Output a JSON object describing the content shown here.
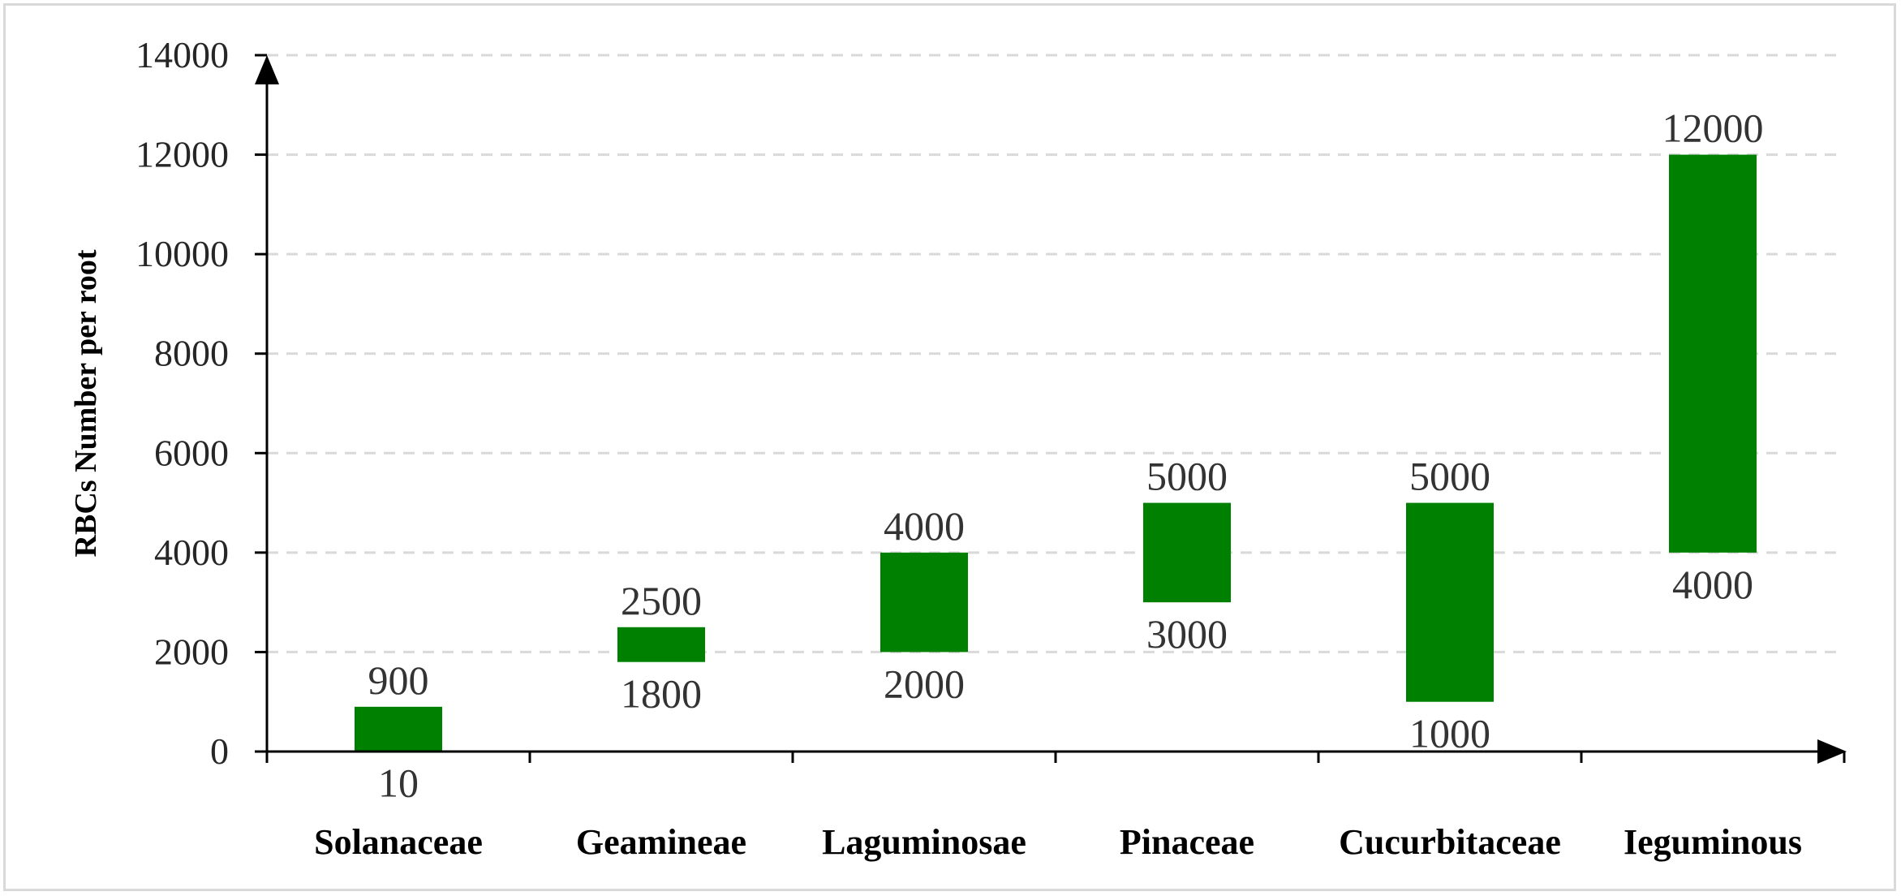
{
  "chart_data": {
    "type": "bar",
    "subtype": "floating-range",
    "title": "",
    "xlabel": "",
    "ylabel": "RBCs Number per root",
    "ylim": [
      0,
      14000
    ],
    "yticks": [
      "0",
      "2000",
      "4000",
      "6000",
      "8000",
      "10000",
      "12000",
      "14000"
    ],
    "grid": true,
    "categories": [
      "Solanaceae",
      "Geamineae",
      "Laguminosae",
      "Pinaceae",
      "Cucurbitaceae",
      "Ieguminous"
    ],
    "low": [
      10,
      1800,
      2000,
      3000,
      1000,
      4000
    ],
    "high": [
      900,
      2500,
      4000,
      5000,
      5000,
      12000
    ],
    "low_labels": [
      "10",
      "1800",
      "2000",
      "3000",
      "1000",
      "4000"
    ],
    "high_labels": [
      "900",
      "2500",
      "4000",
      "5000",
      "5000",
      "12000"
    ],
    "colors": {
      "bar": "#008000",
      "grid": "#d9d9d9",
      "axis": "#000000"
    }
  }
}
